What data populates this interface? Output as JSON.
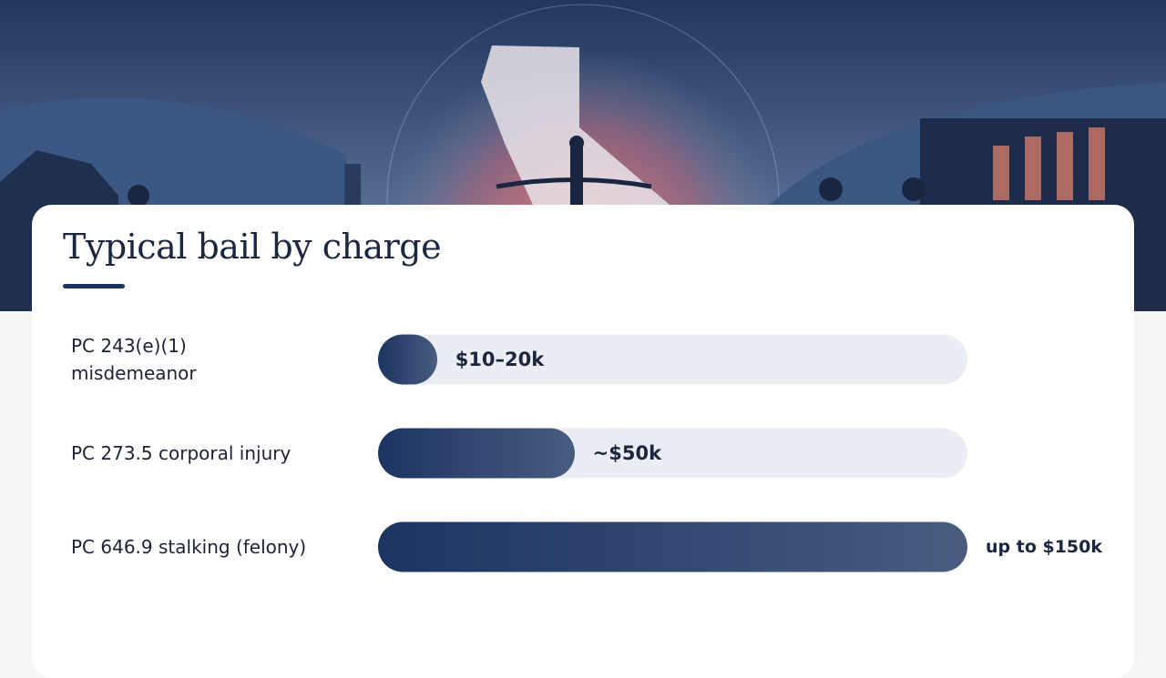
{
  "chart_data": {
    "type": "bar",
    "orientation": "horizontal",
    "title": "Typical bail by charge",
    "categories": [
      "PC 243(e)(1)\nmisdemeanor",
      "PC 273.5 corporal injury",
      "PC 646.9 stalking (felony)"
    ],
    "values": [
      15,
      50,
      150
    ],
    "value_labels": [
      "$10–20k",
      "~$50k",
      "up to $150k"
    ],
    "xlim": [
      0,
      150
    ],
    "color": "#1c3461"
  }
}
